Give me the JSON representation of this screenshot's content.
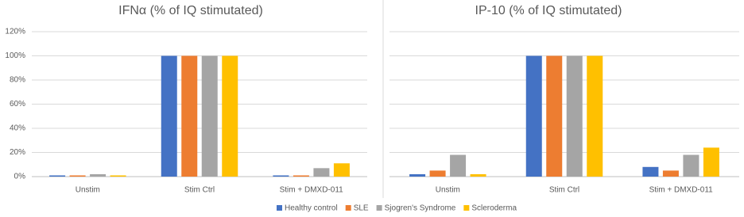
{
  "chart_data": [
    {
      "type": "bar",
      "title": "IFNα (% of IQ stimutated)",
      "categories": [
        "Unstim",
        "Stim Ctrl",
        "Stim + DMXD-011"
      ],
      "series": [
        {
          "name": "Healthy control",
          "color": "#4472c4",
          "values": [
            1,
            100,
            1
          ]
        },
        {
          "name": "SLE",
          "color": "#ed7d31",
          "values": [
            1,
            100,
            1
          ]
        },
        {
          "name": "Sjogren's Syndrome",
          "color": "#a5a5a5",
          "values": [
            2,
            100,
            7
          ]
        },
        {
          "name": "Scleroderma",
          "color": "#ffc000",
          "values": [
            1,
            100,
            11
          ]
        }
      ],
      "ylim": [
        0,
        120
      ],
      "yticks": [
        {
          "value": 0,
          "label": "0%"
        },
        {
          "value": 20,
          "label": "20%"
        },
        {
          "value": 40,
          "label": "40%"
        },
        {
          "value": 60,
          "label": "60%"
        },
        {
          "value": 80,
          "label": "80%"
        },
        {
          "value": 100,
          "label": "100%"
        },
        {
          "value": 120,
          "label": "120%"
        }
      ],
      "grid": true,
      "show_ytick_labels": true,
      "legend": "bottom"
    },
    {
      "type": "bar",
      "title": "IP-10 (% of IQ stimutated)",
      "categories": [
        "Unstim",
        "Stim Ctrl",
        "Stim + DMXD-011"
      ],
      "series": [
        {
          "color": "#4472c4",
          "values": [
            2,
            100,
            8
          ]
        },
        {
          "color": "#ed7d31",
          "values": [
            5,
            100,
            5
          ]
        },
        {
          "color": "#a5a5a5",
          "values": [
            18,
            100,
            18
          ]
        },
        {
          "color": "#ffc000",
          "values": [
            2,
            100,
            24
          ]
        }
      ],
      "ylim": [
        0,
        120
      ],
      "yticks": [
        0,
        20,
        40,
        60,
        80,
        100,
        120
      ],
      "grid": true,
      "show_ytick_labels": false
    }
  ]
}
